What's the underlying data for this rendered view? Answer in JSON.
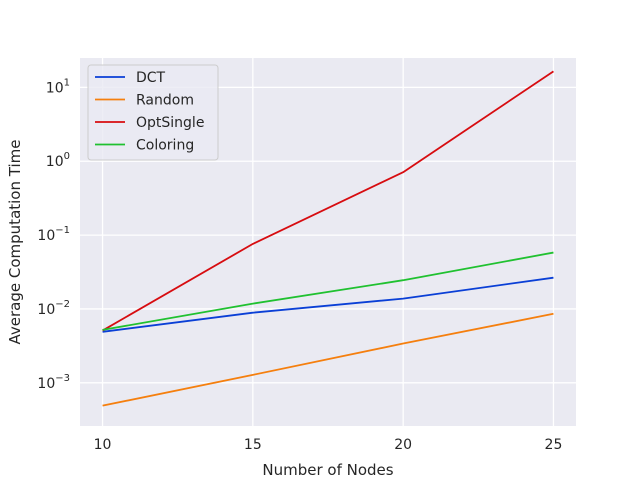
{
  "chart_data": {
    "type": "line",
    "title": "",
    "xlabel": "Number of Nodes",
    "ylabel": "Average Computation Time",
    "x": [
      10,
      15,
      20,
      25
    ],
    "xlim": [
      9.25,
      25.75
    ],
    "x_ticks": [
      10,
      15,
      20,
      25
    ],
    "y_scale": "log",
    "ylim": [
      0.00026,
      25
    ],
    "y_ticks": [
      {
        "value": 0.001,
        "base": "10",
        "exp": "−3"
      },
      {
        "value": 0.01,
        "base": "10",
        "exp": "−2"
      },
      {
        "value": 0.1,
        "base": "10",
        "exp": "−1"
      },
      {
        "value": 1,
        "base": "10",
        "exp": "0"
      },
      {
        "value": 10,
        "base": "10",
        "exp": "1"
      }
    ],
    "grid": true,
    "legend_position": "top-left",
    "series": [
      {
        "name": "DCT",
        "color": "#0a3fd6",
        "values": [
          0.0049,
          0.0089,
          0.0138,
          0.0265
        ]
      },
      {
        "name": "Random",
        "color": "#f57f0e",
        "values": [
          0.00049,
          0.00128,
          0.0034,
          0.0086
        ]
      },
      {
        "name": "OptSingle",
        "color": "#d70c10",
        "values": [
          0.0051,
          0.076,
          0.71,
          16.5
        ]
      },
      {
        "name": "Coloring",
        "color": "#20c130",
        "values": [
          0.0052,
          0.0118,
          0.0245,
          0.058
        ]
      }
    ]
  },
  "style": {
    "plot_bg": "#eaeaf2",
    "grid_color": "#ffffff",
    "text_color": "#262626"
  }
}
